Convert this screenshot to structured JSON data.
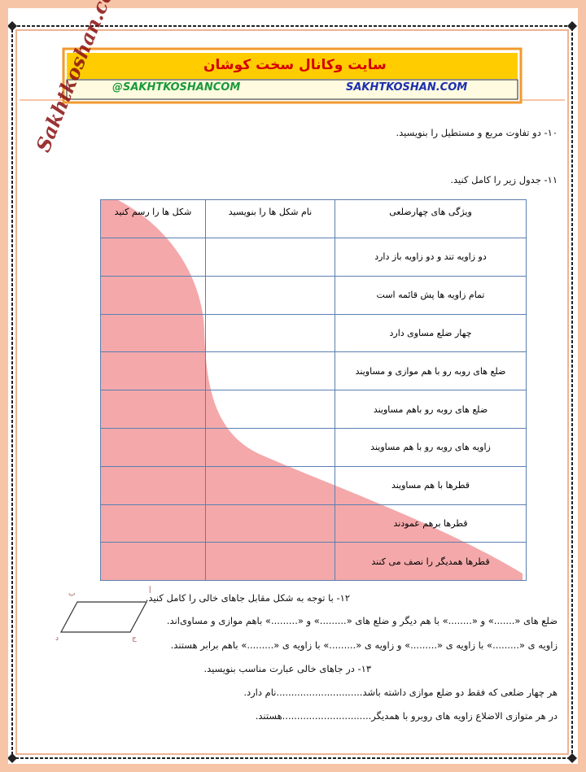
{
  "header": {
    "title": "سایت وکانال سخت کوشان",
    "left_link": "@SAKHTKOSHANCOM",
    "right_link": "SAKHTKOSHAN.COM"
  },
  "logo": "Sakhtkoshan.com",
  "q10": "۱۰- دو تفاوت مربع و مستطیل را بنویسید.",
  "q11": "۱۱- جدول زیر را کامل کنید.",
  "table": {
    "headers": [
      "ویژگی های چهارضلعی",
      "نام شکل ها را بنویسید",
      "شکل ها را رسم کنید"
    ],
    "rows": [
      "دو زاویه تند و دو زاویه باز دارد",
      "تمام زاویه ها پش قائمه است",
      "چهار ضلع مساوی دارد",
      "ضلع های روبه رو با هم موازی و مساویند",
      "ضلع های روبه رو  باهم مساویند",
      "زاویه های روبه رو با هم مساویند",
      "قطرها با هم مساویند",
      "قطرها برهم عمودند",
      "قطرها همدیگر را نصف می کنند"
    ]
  },
  "q12": {
    "title": "۱۲- با توجه به شکل مقابل جاهای خالی را کامل کنید.",
    "lines": [
      "ضلع های «.......» و «........» با هم دیگر و ضلع های «.........» و «.........» باهم موازی و مساوی‌اند.",
      "زاویه ی «.........» با زاویه ی «.........» و زاویه ی «.........» با زاویه ی «.........» باهم برابر هستند."
    ],
    "shape_labels": [
      "آ",
      "ب",
      "ج",
      "د"
    ]
  },
  "q13": {
    "title": "۱۳- در جاهای خالی عبارت مناسب بنویسید.",
    "lines": [
      "هر چهار ضلعی که فقط دو ضلع موازی داشته باشد.............................نام دارد.",
      "در هر متوازی الاضلاع زاویه های روبرو با همدیگر..............................هستند."
    ]
  }
}
